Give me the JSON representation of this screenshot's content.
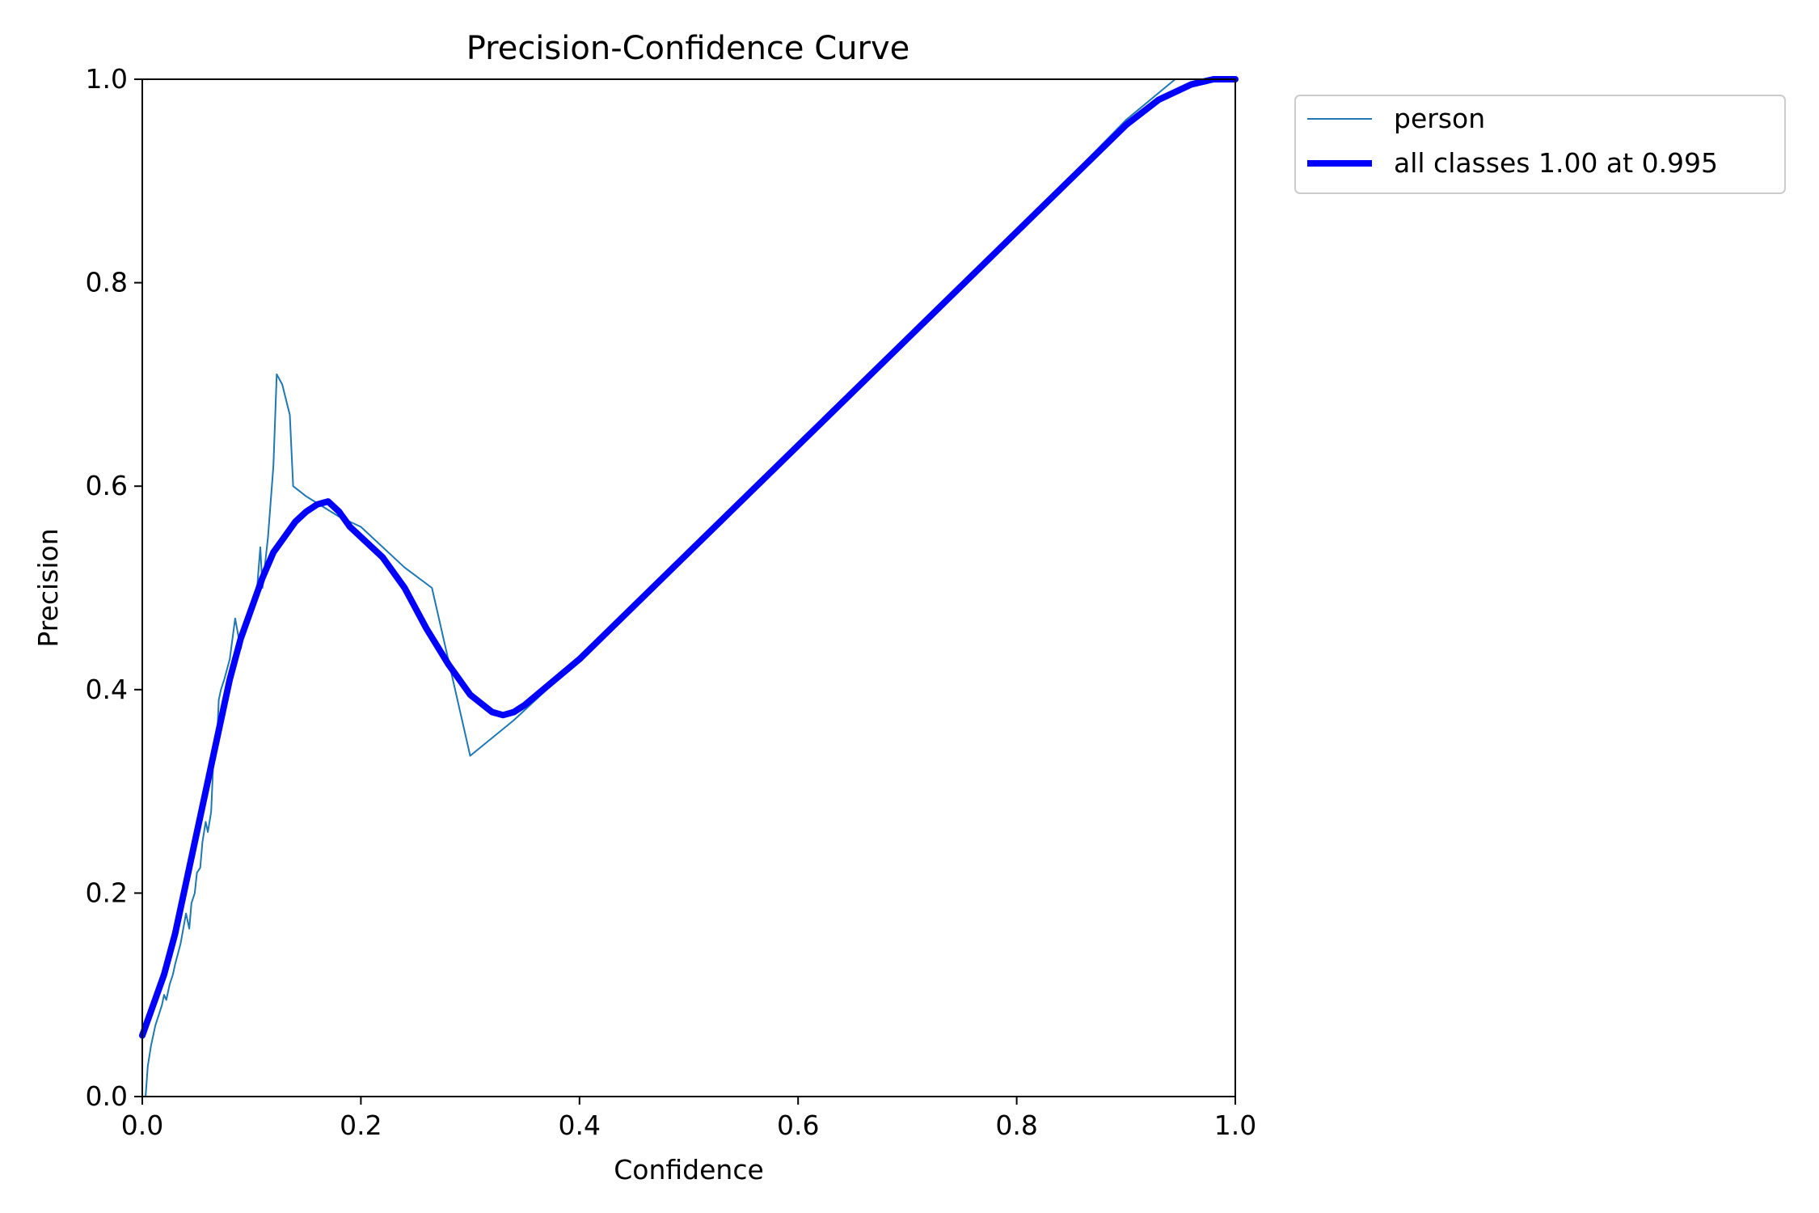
{
  "chart_data": {
    "type": "line",
    "title": "Precision-Confidence Curve",
    "xlabel": "Confidence",
    "ylabel": "Precision",
    "xlim": [
      0,
      1
    ],
    "ylim": [
      0,
      1
    ],
    "xticks": [
      0.0,
      0.2,
      0.4,
      0.6,
      0.8,
      1.0
    ],
    "yticks": [
      0.0,
      0.2,
      0.4,
      0.6,
      0.8,
      1.0
    ],
    "tick_labels_x": [
      "0.0",
      "0.2",
      "0.4",
      "0.6",
      "0.8",
      "1.0"
    ],
    "tick_labels_y": [
      "0.0",
      "0.2",
      "0.4",
      "0.6",
      "0.8",
      "1.0"
    ],
    "grid": false,
    "legend_position": "outside-top-right",
    "series": [
      {
        "name": "person",
        "color": "#1f77b4",
        "style": "thin",
        "x": [
          0.002,
          0.003,
          0.005,
          0.008,
          0.012,
          0.015,
          0.018,
          0.02,
          0.022,
          0.025,
          0.028,
          0.03,
          0.035,
          0.04,
          0.043,
          0.045,
          0.048,
          0.05,
          0.053,
          0.055,
          0.058,
          0.06,
          0.063,
          0.065,
          0.068,
          0.07,
          0.072,
          0.075,
          0.08,
          0.085,
          0.09,
          0.092,
          0.095,
          0.1,
          0.105,
          0.108,
          0.11,
          0.112,
          0.115,
          0.12,
          0.123,
          0.128,
          0.135,
          0.138,
          0.15,
          0.165,
          0.18,
          0.2,
          0.24,
          0.265,
          0.3,
          0.34,
          0.4,
          0.6,
          0.8,
          0.9,
          0.945,
          1.0
        ],
        "y": [
          0.0,
          0.0,
          0.03,
          0.05,
          0.07,
          0.08,
          0.09,
          0.1,
          0.095,
          0.11,
          0.12,
          0.13,
          0.15,
          0.18,
          0.165,
          0.19,
          0.2,
          0.22,
          0.225,
          0.25,
          0.27,
          0.26,
          0.28,
          0.33,
          0.34,
          0.39,
          0.4,
          0.41,
          0.43,
          0.47,
          0.44,
          0.45,
          0.46,
          0.48,
          0.5,
          0.54,
          0.5,
          0.52,
          0.55,
          0.62,
          0.71,
          0.7,
          0.67,
          0.6,
          0.59,
          0.58,
          0.57,
          0.56,
          0.52,
          0.5,
          0.335,
          0.37,
          0.43,
          0.64,
          0.85,
          0.96,
          1.0,
          1.0
        ]
      },
      {
        "name": "all classes 1.00 at 0.995",
        "color": "#0000ff",
        "style": "thick",
        "x": [
          0.0,
          0.01,
          0.02,
          0.03,
          0.04,
          0.05,
          0.06,
          0.07,
          0.08,
          0.09,
          0.1,
          0.11,
          0.12,
          0.13,
          0.14,
          0.15,
          0.16,
          0.17,
          0.18,
          0.19,
          0.2,
          0.22,
          0.24,
          0.26,
          0.28,
          0.3,
          0.32,
          0.33,
          0.34,
          0.35,
          0.4,
          0.5,
          0.6,
          0.7,
          0.8,
          0.9,
          0.93,
          0.96,
          0.98,
          1.0
        ],
        "y": [
          0.06,
          0.09,
          0.12,
          0.16,
          0.21,
          0.26,
          0.31,
          0.36,
          0.41,
          0.45,
          0.48,
          0.51,
          0.535,
          0.55,
          0.565,
          0.575,
          0.582,
          0.585,
          0.575,
          0.56,
          0.55,
          0.53,
          0.5,
          0.46,
          0.425,
          0.395,
          0.378,
          0.375,
          0.378,
          0.385,
          0.43,
          0.535,
          0.64,
          0.745,
          0.85,
          0.955,
          0.98,
          0.995,
          1.0,
          1.0
        ]
      }
    ]
  }
}
